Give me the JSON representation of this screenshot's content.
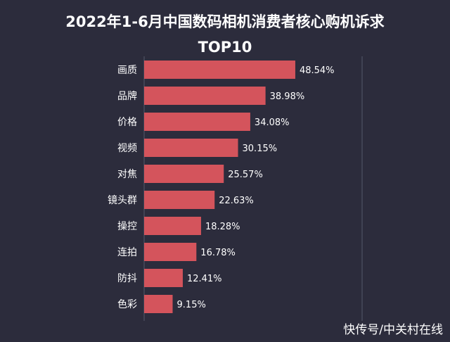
{
  "title_line1": "2022年1-6月中国数码相机消费者核心购机诉求",
  "title_line2": "TOP10",
  "watermark": "快传号/中关村在线",
  "colors": {
    "background": "#2c2c3c",
    "bar": "#d4545c",
    "text": "#ffffff",
    "axis": "#55596a"
  },
  "chart_data": {
    "type": "bar",
    "orientation": "horizontal",
    "categories": [
      "画质",
      "品牌",
      "价格",
      "视频",
      "对焦",
      "镜头群",
      "操控",
      "连拍",
      "防抖",
      "色彩"
    ],
    "values": [
      48.54,
      38.98,
      34.08,
      30.15,
      25.57,
      22.63,
      18.28,
      16.78,
      12.41,
      9.15
    ],
    "value_labels": [
      "48.54%",
      "38.98%",
      "34.08%",
      "30.15%",
      "25.57%",
      "22.63%",
      "18.28%",
      "16.78%",
      "12.41%",
      "9.15%"
    ],
    "title": "2022年1-6月中国数码相机消费者核心购机诉求 TOP10",
    "xlim": [
      0,
      70
    ],
    "grid": false,
    "legend": "none"
  }
}
